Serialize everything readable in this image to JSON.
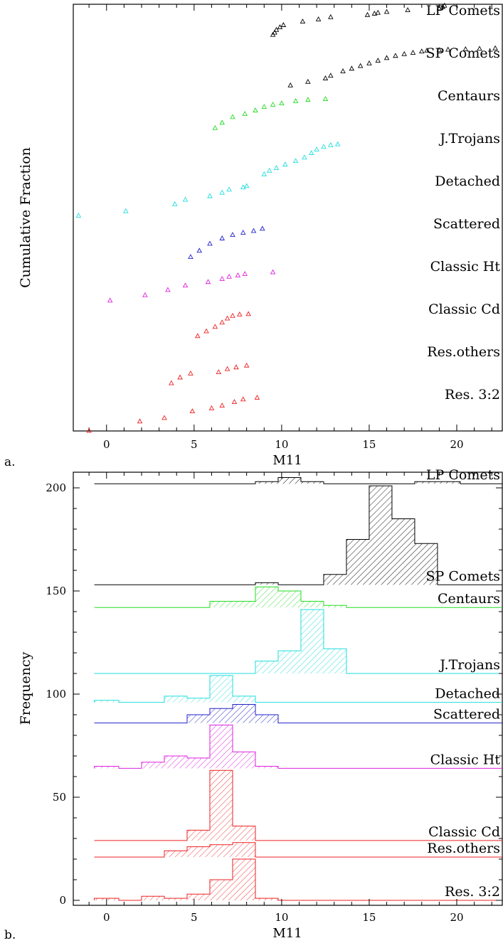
{
  "colors": {
    "black": "#000000",
    "green": "#22dd22",
    "cyan": "#22dddd",
    "blue": "#2222cc",
    "magenta": "#dd22dd",
    "red": "#ee2222"
  },
  "chart_data": [
    {
      "panel_label": "a.",
      "type": "scatter",
      "ylabel": "Cumulative Fraction",
      "xlabel": "M11",
      "xlim": [
        -1.9,
        22.6
      ],
      "xticks": [
        0,
        5,
        10,
        15,
        20
      ],
      "y_tick_labels": false,
      "marker": "open-triangle",
      "series": [
        {
          "name": "LP Comets",
          "color": "black",
          "offset": 9,
          "points": [
            [
              9.5,
              0.28
            ],
            [
              9.6,
              0.33
            ],
            [
              9.7,
              0.39
            ],
            [
              9.9,
              0.45
            ],
            [
              10.1,
              0.5
            ],
            [
              11.2,
              0.58
            ],
            [
              12.1,
              0.63
            ],
            [
              12.8,
              0.68
            ],
            [
              14.9,
              0.73
            ],
            [
              15.3,
              0.76
            ],
            [
              15.5,
              0.78
            ],
            [
              16.0,
              0.8
            ],
            [
              17.2,
              0.84
            ],
            [
              19.0,
              0.88
            ],
            [
              19.2,
              0.91
            ],
            [
              19.3,
              0.94
            ]
          ]
        },
        {
          "name": "SP Comets",
          "color": "black",
          "offset": 8,
          "points": [
            [
              10.5,
              0.1
            ],
            [
              11.5,
              0.18
            ],
            [
              12.5,
              0.26
            ],
            [
              12.8,
              0.32
            ],
            [
              13.5,
              0.42
            ],
            [
              14.0,
              0.48
            ],
            [
              14.5,
              0.54
            ],
            [
              15.0,
              0.6
            ],
            [
              15.5,
              0.66
            ],
            [
              16.0,
              0.72
            ],
            [
              16.5,
              0.77
            ],
            [
              17.0,
              0.81
            ],
            [
              17.5,
              0.84
            ],
            [
              18.0,
              0.87
            ],
            [
              18.3,
              0.89
            ],
            [
              19.0,
              0.9
            ],
            [
              19.5,
              0.91
            ],
            [
              20.5,
              0.92
            ],
            [
              21.3,
              0.93
            ],
            [
              22.2,
              0.94
            ]
          ]
        },
        {
          "name": "Centaurs",
          "color": "green",
          "offset": 7,
          "points": [
            [
              6.2,
              0.1
            ],
            [
              6.6,
              0.22
            ],
            [
              7.2,
              0.35
            ],
            [
              7.9,
              0.42
            ],
            [
              8.5,
              0.5
            ],
            [
              9.0,
              0.58
            ],
            [
              9.5,
              0.63
            ],
            [
              10.0,
              0.66
            ],
            [
              10.8,
              0.71
            ],
            [
              11.5,
              0.74
            ],
            [
              12.5,
              0.76
            ]
          ]
        },
        {
          "name": "J.Trojans",
          "color": "cyan",
          "offset": 6,
          "points": [
            [
              9.0,
              0.02
            ],
            [
              9.3,
              0.1
            ],
            [
              9.7,
              0.16
            ],
            [
              10.2,
              0.24
            ],
            [
              10.8,
              0.32
            ],
            [
              11.3,
              0.4
            ],
            [
              11.7,
              0.5
            ],
            [
              12.0,
              0.58
            ],
            [
              12.4,
              0.64
            ],
            [
              12.8,
              0.68
            ],
            [
              13.2,
              0.7
            ]
          ]
        },
        {
          "name": "Detached",
          "color": "cyan",
          "offset": 5,
          "points": [
            [
              -1.6,
              0.05
            ],
            [
              1.1,
              0.15
            ],
            [
              3.9,
              0.31
            ],
            [
              4.5,
              0.41
            ],
            [
              5.9,
              0.49
            ],
            [
              6.6,
              0.57
            ],
            [
              7.0,
              0.64
            ],
            [
              7.8,
              0.69
            ],
            [
              8.0,
              0.72
            ]
          ]
        },
        {
          "name": "Scattered",
          "color": "blue",
          "offset": 4,
          "points": [
            [
              4.8,
              0.08
            ],
            [
              5.3,
              0.22
            ],
            [
              5.9,
              0.38
            ],
            [
              6.6,
              0.5
            ],
            [
              7.2,
              0.58
            ],
            [
              7.8,
              0.63
            ],
            [
              8.4,
              0.67
            ],
            [
              8.9,
              0.72
            ]
          ]
        },
        {
          "name": "Classic Ht",
          "color": "magenta",
          "offset": 3,
          "points": [
            [
              0.2,
              0.06
            ],
            [
              2.2,
              0.18
            ],
            [
              3.5,
              0.3
            ],
            [
              4.5,
              0.4
            ],
            [
              5.8,
              0.48
            ],
            [
              6.6,
              0.55
            ],
            [
              7.0,
              0.6
            ],
            [
              7.5,
              0.63
            ],
            [
              7.9,
              0.66
            ],
            [
              9.5,
              0.7
            ]
          ]
        },
        {
          "name": "Classic Cd",
          "color": "red",
          "offset": 2,
          "points": [
            [
              5.2,
              0.22
            ],
            [
              5.7,
              0.33
            ],
            [
              6.2,
              0.43
            ],
            [
              6.6,
              0.53
            ],
            [
              6.9,
              0.62
            ],
            [
              7.2,
              0.68
            ],
            [
              7.6,
              0.71
            ],
            [
              8.1,
              0.72
            ]
          ]
        },
        {
          "name": "Res.others",
          "color": "red",
          "offset": 1,
          "points": [
            [
              3.7,
              0.12
            ],
            [
              4.2,
              0.25
            ],
            [
              4.8,
              0.34
            ],
            [
              6.4,
              0.37
            ],
            [
              6.9,
              0.44
            ],
            [
              7.4,
              0.48
            ],
            [
              8.0,
              0.52
            ]
          ]
        },
        {
          "name": "Res. 3:2",
          "color": "red",
          "offset": 0,
          "points": [
            [
              -1.0,
              0.01
            ],
            [
              1.9,
              0.22
            ],
            [
              3.3,
              0.3
            ],
            [
              4.9,
              0.45
            ],
            [
              6.0,
              0.52
            ],
            [
              6.6,
              0.58
            ],
            [
              7.3,
              0.66
            ],
            [
              7.8,
              0.72
            ],
            [
              8.6,
              0.76
            ]
          ]
        }
      ]
    },
    {
      "panel_label": "b.",
      "type": "bar",
      "ylabel": "Frequency",
      "xlabel": "M11",
      "xlim": [
        -1.9,
        22.6
      ],
      "ylim": [
        0,
        205
      ],
      "xticks": [
        0,
        5,
        10,
        15,
        20
      ],
      "yticks": [
        0,
        50,
        100,
        150,
        200
      ],
      "bin_edges": [
        -0.7,
        0.7,
        2.0,
        3.3,
        4.6,
        5.9,
        7.2,
        8.5,
        9.8,
        11.1,
        12.4,
        13.7,
        15.0,
        16.3,
        17.6,
        18.9,
        20.2,
        21.5,
        22.6
      ],
      "series": [
        {
          "name": "LP Comets",
          "color": "black",
          "baseline": 202,
          "counts": [
            0,
            0,
            0,
            0,
            0,
            0,
            0,
            1,
            3,
            1,
            0,
            0,
            0,
            0,
            1,
            1,
            0,
            0
          ]
        },
        {
          "name": "SP Comets",
          "color": "black",
          "baseline": 153,
          "counts": [
            0,
            0,
            0,
            0,
            0,
            0,
            0,
            1,
            0,
            0,
            5,
            22,
            48,
            32,
            20,
            0,
            0,
            0
          ]
        },
        {
          "name": "Centaurs",
          "color": "green",
          "baseline": 142,
          "counts": [
            0,
            0,
            0,
            0,
            0,
            3,
            3,
            10,
            8,
            3,
            1,
            0,
            0,
            0,
            0,
            0,
            0,
            0
          ]
        },
        {
          "name": "J.Trojans",
          "color": "cyan",
          "baseline": 110,
          "counts": [
            0,
            0,
            0,
            0,
            0,
            0,
            0,
            6,
            11,
            31,
            12,
            0,
            0,
            0,
            0,
            0,
            0,
            0
          ]
        },
        {
          "name": "Detached",
          "color": "cyan",
          "baseline": 96,
          "counts": [
            1,
            0,
            0,
            3,
            2,
            13,
            3,
            0,
            0,
            0,
            0,
            0,
            0,
            0,
            0,
            0,
            0,
            0
          ]
        },
        {
          "name": "Scattered",
          "color": "blue",
          "baseline": 86,
          "counts": [
            0,
            0,
            0,
            0,
            4,
            7,
            9,
            4,
            0,
            0,
            0,
            0,
            0,
            0,
            0,
            0,
            0,
            0
          ]
        },
        {
          "name": "Classic Ht",
          "color": "magenta",
          "baseline": 64,
          "counts": [
            1,
            0,
            3,
            6,
            5,
            21,
            8,
            1,
            0,
            0,
            0,
            0,
            0,
            0,
            0,
            0,
            0,
            0
          ]
        },
        {
          "name": "Classic Cd",
          "color": "red",
          "baseline": 29,
          "counts": [
            0,
            0,
            0,
            0,
            5,
            34,
            7,
            0,
            0,
            0,
            0,
            0,
            0,
            0,
            0,
            0,
            0,
            0
          ]
        },
        {
          "name": "Res.others",
          "color": "red",
          "baseline": 21,
          "counts": [
            0,
            0,
            0,
            3,
            5,
            6,
            7,
            0,
            0,
            0,
            0,
            0,
            0,
            0,
            0,
            0,
            0,
            0
          ]
        },
        {
          "name": "Res. 3:2",
          "color": "red",
          "baseline": 0,
          "counts": [
            1,
            0,
            2,
            1,
            3,
            10,
            20,
            1,
            0,
            0,
            0,
            0,
            0,
            0,
            0,
            0,
            0,
            0
          ]
        }
      ]
    }
  ]
}
